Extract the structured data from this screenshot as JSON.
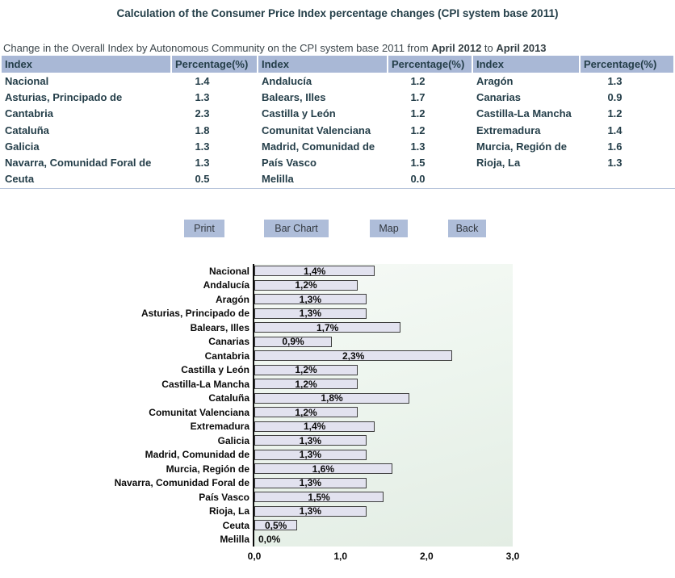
{
  "page": {
    "title": "Calculation of the Consumer Price Index percentage changes (CPI system base 2011)",
    "subtitle_prefix": "Change in the Overall Index by Autonomous Community on the CPI system base 2011 from ",
    "subtitle_from": "April 2012",
    "subtitle_middle": " to ",
    "subtitle_to": "April 2013"
  },
  "table": {
    "column_headers": [
      "Index",
      "Percentage(%)",
      "Index",
      "Percentage(%)",
      "Index",
      "Percentage(%)"
    ],
    "rows": [
      [
        "Nacional",
        "1.4",
        "Andalucía",
        "1.2",
        "Aragón",
        "1.3"
      ],
      [
        "Asturias, Principado de",
        "1.3",
        "Balears, Illes",
        "1.7",
        "Canarias",
        "0.9"
      ],
      [
        "Cantabria",
        "2.3",
        "Castilla y León",
        "1.2",
        "Castilla-La Mancha",
        "1.2"
      ],
      [
        "Cataluña",
        "1.8",
        "Comunitat Valenciana",
        "1.2",
        "Extremadura",
        "1.4"
      ],
      [
        "Galicia",
        "1.3",
        "Madrid, Comunidad de",
        "1.3",
        "Murcia, Región de",
        "1.6"
      ],
      [
        "Navarra, Comunidad Foral de",
        "1.3",
        "País Vasco",
        "1.5",
        "Rioja, La",
        "1.3"
      ],
      [
        "Ceuta",
        "0.5",
        "Melilla",
        "0.0",
        "",
        ""
      ]
    ]
  },
  "toolbar": {
    "buttons": [
      {
        "label": "Print"
      },
      {
        "label": "Bar Chart"
      },
      {
        "label": "Map"
      },
      {
        "label": "Back"
      }
    ]
  },
  "chart_data": {
    "type": "bar",
    "orientation": "horizontal",
    "title": "",
    "xlabel": "",
    "ylabel": "",
    "xlim": [
      0,
      3.0
    ],
    "grid": false,
    "legend": false,
    "categories": [
      "Nacional",
      "Andalucía",
      "Aragón",
      "Asturias, Principado de",
      "Balears, Illes",
      "Canarias",
      "Cantabria",
      "Castilla y León",
      "Castilla-La Mancha",
      "Cataluña",
      "Comunitat Valenciana",
      "Extremadura",
      "Galicia",
      "Madrid, Comunidad de",
      "Murcia, Región de",
      "Navarra, Comunidad Foral de",
      "País Vasco",
      "Rioja, La",
      "Ceuta",
      "Melilla"
    ],
    "values": [
      1.4,
      1.2,
      1.3,
      1.3,
      1.7,
      0.9,
      2.3,
      1.2,
      1.2,
      1.8,
      1.2,
      1.4,
      1.3,
      1.3,
      1.6,
      1.3,
      1.5,
      1.3,
      0.5,
      0.0
    ],
    "bar_labels": [
      "1,4%",
      "1,2%",
      "1,3%",
      "1,3%",
      "1,7%",
      "0,9%",
      "2,3%",
      "1,2%",
      "1,2%",
      "1,8%",
      "1,2%",
      "1,4%",
      "1,3%",
      "1,3%",
      "1,6%",
      "1,3%",
      "1,5%",
      "1,3%",
      "0,5%",
      "0,0%"
    ],
    "x_tick_labels": [
      "0,0",
      "1,0",
      "2,0",
      "3,0"
    ]
  },
  "colors": {
    "title_text": "#233e48",
    "table_header_bg": "#a9b8d6",
    "table_text": "#243e49",
    "button_bg": "#aebdd9",
    "bar_fill": "#e2e2ef",
    "bar_border": "#3f3f3f",
    "plot_bg_top": "#f6faf6",
    "plot_bg_bottom": "#e3ede4",
    "separator": "#b9c6dc"
  }
}
